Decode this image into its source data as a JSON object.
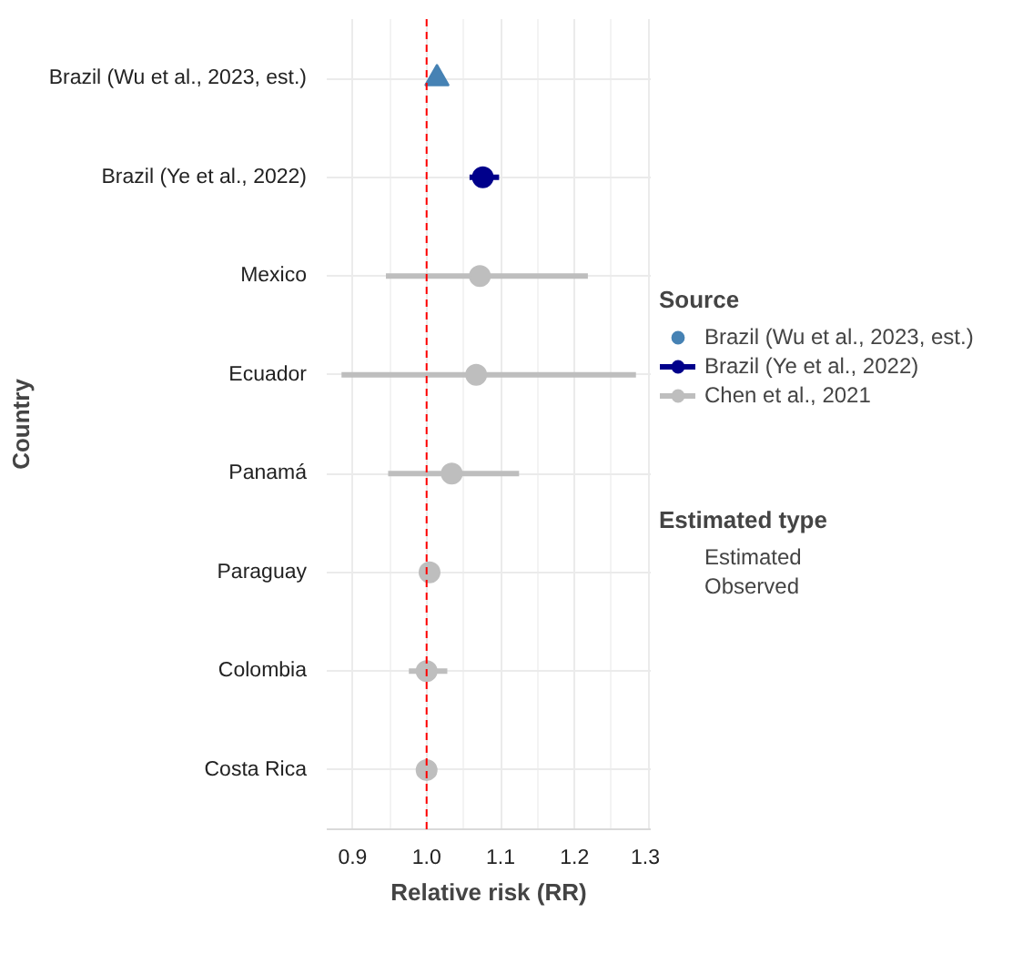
{
  "chart_data": {
    "type": "scatter",
    "orientation": "horizontal",
    "xlabel": "Relative risk (RR)",
    "ylabel": "Country",
    "categories": [
      "Brazil (Wu et al., 2023, est.)",
      "Brazil (Ye et al., 2022)",
      "Mexico",
      "Ecuador",
      "Panamá",
      "Paraguay",
      "Colombia",
      "Costa Rica"
    ],
    "series": [
      {
        "name": "Brazil (Wu et al., 2023, est.)",
        "color": "#4682b4",
        "marker": "triangle",
        "values": [
          1.014,
          null,
          null,
          null,
          null,
          null,
          null,
          null
        ]
      },
      {
        "name": "Brazil (Ye et al., 2022)",
        "color": "#00008b",
        "marker": "circle",
        "values": [
          null,
          1.076,
          null,
          null,
          null,
          null,
          null,
          null
        ],
        "errors": [
          null,
          [
            1.058,
            1.098
          ],
          null,
          null,
          null,
          null,
          null,
          null
        ]
      },
      {
        "name": "Chen et al., 2021",
        "color": "#bebebe",
        "marker": "circle",
        "values": [
          null,
          null,
          1.072,
          1.067,
          1.034,
          1.004,
          1.0,
          1.0
        ],
        "errors": [
          null,
          null,
          [
            0.945,
            1.218
          ],
          [
            0.885,
            1.283
          ],
          [
            0.948,
            1.125
          ],
          null,
          [
            0.976,
            1.028
          ],
          null
        ]
      }
    ],
    "xlim": [
      0.865,
      1.303
    ],
    "xticks": [
      0.9,
      {
        "value": 1,
        "label": "1.0"
      },
      1.1,
      1.2,
      1.3
    ],
    "ref_lines": [
      {
        "axis": "x",
        "value": 1.0,
        "color": "#ff0000",
        "line_style": "dashed"
      }
    ],
    "grid": true,
    "legend": "right",
    "legend_title": "Source",
    "annotations": [
      "Estimated type",
      "Estimated",
      "Observed"
    ]
  }
}
